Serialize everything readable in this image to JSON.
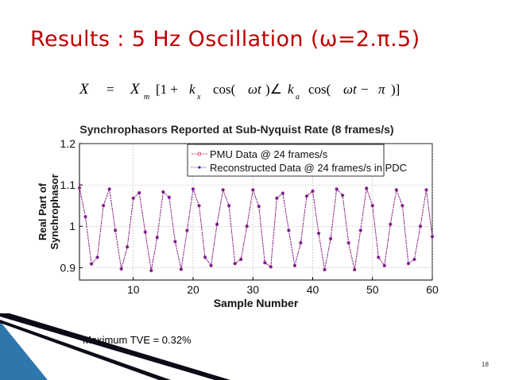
{
  "slide": {
    "title": "Results : 5 Hz Oscillation (ω=2.π.5)",
    "equation": {
      "lhs": "X",
      "eq": "=",
      "X": "X",
      "m": "m",
      "part1": "[1 +",
      "k": "k",
      "x": "x",
      "cos1": "cos(",
      "wt1": "ωt",
      "close1": ")∠",
      "k2": "k",
      "a": "a",
      "cos2": "cos(",
      "wt2": "ωt −",
      "pi": "π",
      "close2": ")]"
    },
    "tve": "Maximum TVE = 0.32%",
    "page_number": "18"
  },
  "colors": {
    "title": "#c00000",
    "pmu_series": "#d0306a",
    "reconstructed_series": "#4b1aa8",
    "deco_dark": "#0c0c18",
    "deco_blue": "#2e77ad"
  },
  "chart_data": {
    "type": "line",
    "title": "Synchrophasors Reported at Sub-Nyquist Rate (8 frames/s)",
    "xlabel": "Sample Number",
    "ylabel": "Real Part of Synchrophasor",
    "xlim": [
      1,
      60
    ],
    "ylim": [
      0.87,
      1.2
    ],
    "xticks": [
      "10",
      "20",
      "30",
      "40",
      "50",
      "60"
    ],
    "yticks": [
      "0.9",
      "1",
      "1.1",
      "1.2"
    ],
    "xtick_values": [
      10,
      20,
      30,
      40,
      50,
      60
    ],
    "ytick_values": [
      0.9,
      1.0,
      1.1,
      1.2
    ],
    "legend_position": "top-right",
    "x": [
      1,
      2,
      3,
      4,
      5,
      6,
      7,
      8,
      9,
      10,
      11,
      12,
      13,
      14,
      15,
      16,
      17,
      18,
      19,
      20,
      21,
      22,
      23,
      24,
      25,
      26,
      27,
      28,
      29,
      30,
      31,
      32,
      33,
      34,
      35,
      36,
      37,
      38,
      39,
      40,
      41,
      42,
      43,
      44,
      45,
      46,
      47,
      48,
      49,
      50,
      51,
      52,
      53,
      54,
      55,
      56,
      57,
      58,
      59,
      60
    ],
    "series": [
      {
        "name": "PMU Data @ 24 frames/s",
        "marker": "o",
        "values": [
          1.093,
          1.023,
          0.909,
          0.925,
          1.05,
          1.09,
          0.99,
          0.897,
          0.95,
          1.068,
          1.081,
          0.986,
          0.893,
          0.973,
          1.083,
          1.07,
          0.963,
          0.896,
          0.99,
          1.09,
          1.05,
          0.925,
          0.905,
          1.005,
          1.088,
          1.05,
          0.91,
          0.92,
          1.0,
          1.088,
          1.048,
          0.912,
          0.902,
          1.068,
          1.08,
          0.99,
          0.905,
          0.96,
          1.073,
          1.085,
          0.983,
          0.895,
          0.97,
          1.09,
          1.075,
          0.96,
          0.895,
          0.99,
          1.092,
          1.05,
          0.925,
          0.905,
          1.005,
          1.088,
          1.05,
          0.91,
          0.92,
          1.0,
          1.088,
          0.975
        ]
      },
      {
        "name": "Reconstructed Data @ 24 frames/s in PDC",
        "marker": "x",
        "values": [
          1.093,
          1.023,
          0.909,
          0.925,
          1.05,
          1.09,
          0.99,
          0.897,
          0.95,
          1.068,
          1.081,
          0.986,
          0.893,
          0.973,
          1.083,
          1.07,
          0.963,
          0.896,
          0.99,
          1.09,
          1.05,
          0.925,
          0.905,
          1.005,
          1.088,
          1.05,
          0.91,
          0.92,
          1.0,
          1.088,
          1.048,
          0.912,
          0.902,
          1.068,
          1.08,
          0.99,
          0.905,
          0.96,
          1.073,
          1.085,
          0.983,
          0.895,
          0.97,
          1.09,
          1.075,
          0.96,
          0.895,
          0.99,
          1.092,
          1.05,
          0.925,
          0.905,
          1.005,
          1.088,
          1.05,
          0.91,
          0.92,
          1.0,
          1.088,
          0.975
        ]
      }
    ]
  }
}
